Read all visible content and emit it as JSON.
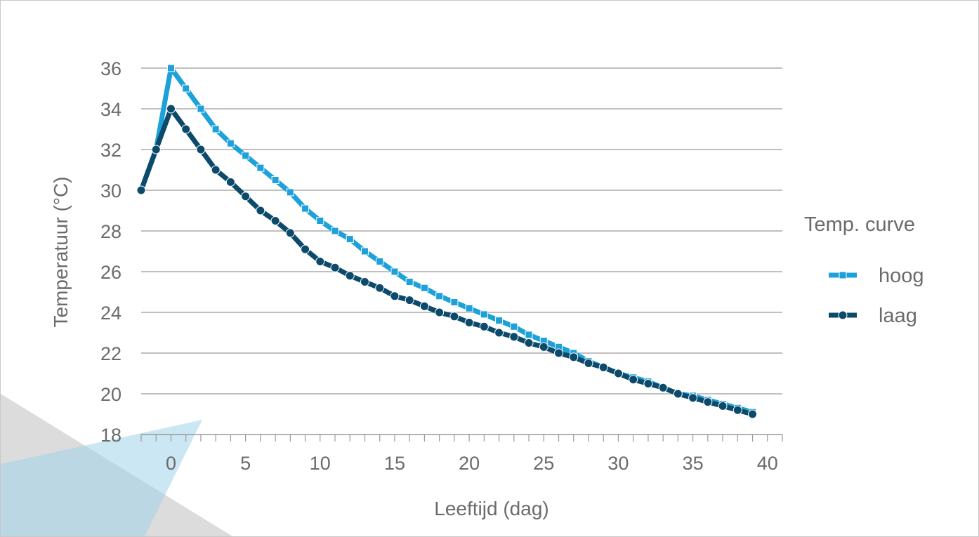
{
  "chart_data": {
    "type": "line",
    "xlabel": "Leeftijd (dag)",
    "ylabel": "Temperatuur (°C)",
    "xlim": [
      -2,
      41
    ],
    "ylim": [
      18,
      36
    ],
    "x_ticks": [
      0,
      5,
      10,
      15,
      20,
      25,
      30,
      35,
      40
    ],
    "y_ticks": [
      18,
      20,
      22,
      24,
      26,
      28,
      30,
      32,
      34,
      36
    ],
    "grid": true,
    "legend": {
      "title": "Temp. curve",
      "position": "right"
    },
    "series": [
      {
        "name": "hoog",
        "color": "#1ca1d9",
        "marker": "square",
        "x": [
          -2,
          -1,
          0,
          1,
          2,
          3,
          4,
          5,
          6,
          7,
          8,
          9,
          10,
          11,
          12,
          13,
          14,
          15,
          16,
          17,
          18,
          19,
          20,
          21,
          22,
          23,
          24,
          25,
          26,
          27,
          28,
          29,
          30,
          31,
          32,
          33,
          34,
          35,
          36,
          37,
          38,
          39
        ],
        "values": [
          30.0,
          32.0,
          36.0,
          35.0,
          34.0,
          33.0,
          32.3,
          31.7,
          31.1,
          30.5,
          29.9,
          29.1,
          28.5,
          28.0,
          27.6,
          27.0,
          26.5,
          26.0,
          25.5,
          25.2,
          24.8,
          24.5,
          24.2,
          23.9,
          23.6,
          23.3,
          22.9,
          22.6,
          22.3,
          22.0,
          21.6,
          21.3,
          21.0,
          20.8,
          20.6,
          20.3,
          20.0,
          19.9,
          19.7,
          19.5,
          19.3,
          19.1
        ]
      },
      {
        "name": "laag",
        "color": "#0c4a6b",
        "marker": "circle",
        "x": [
          -2,
          -1,
          0,
          1,
          2,
          3,
          4,
          5,
          6,
          7,
          8,
          9,
          10,
          11,
          12,
          13,
          14,
          15,
          16,
          17,
          18,
          19,
          20,
          21,
          22,
          23,
          24,
          25,
          26,
          27,
          28,
          29,
          30,
          31,
          32,
          33,
          34,
          35,
          36,
          37,
          38,
          39
        ],
        "values": [
          30.0,
          32.0,
          34.0,
          33.0,
          32.0,
          31.0,
          30.4,
          29.7,
          29.0,
          28.5,
          27.9,
          27.1,
          26.5,
          26.2,
          25.8,
          25.5,
          25.2,
          24.8,
          24.6,
          24.3,
          24.0,
          23.8,
          23.5,
          23.3,
          23.0,
          22.8,
          22.5,
          22.3,
          22.0,
          21.8,
          21.5,
          21.3,
          21.0,
          20.7,
          20.5,
          20.3,
          20.0,
          19.8,
          19.6,
          19.4,
          19.2,
          19.0
        ]
      }
    ]
  }
}
